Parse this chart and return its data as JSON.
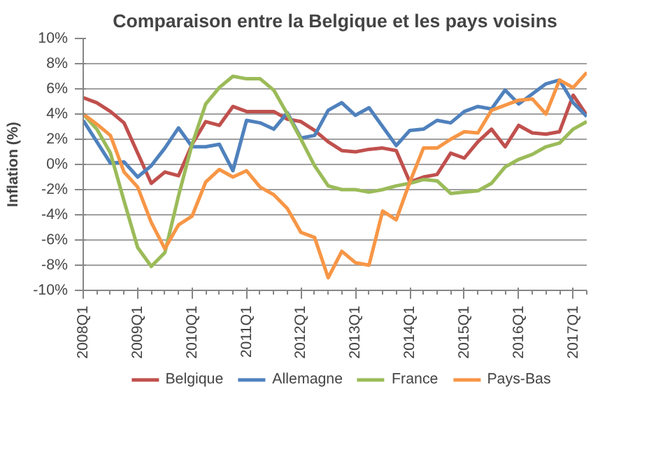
{
  "chart_data": {
    "type": "line",
    "title": "Comparaison entre la Belgique et les pays voisins",
    "ylabel": "Inflation (%)",
    "categories": [
      "2008Q1",
      null,
      null,
      null,
      "2009Q1",
      null,
      null,
      null,
      "2010Q1",
      null,
      null,
      null,
      "2011Q1",
      null,
      null,
      null,
      "2012Q1",
      null,
      null,
      null,
      "2013Q1",
      null,
      null,
      null,
      "2014Q1",
      null,
      null,
      null,
      "2015Q1",
      null,
      null,
      null,
      "2016Q1",
      null,
      null,
      null,
      "2017Q1",
      null
    ],
    "series": [
      {
        "name": "Belgique",
        "color": "#c0504d",
        "values": [
          5.3,
          4.9,
          4.2,
          3.3,
          0.9,
          -1.5,
          -0.6,
          -0.9,
          1.6,
          3.4,
          3.1,
          4.6,
          4.2,
          4.2,
          4.2,
          3.6,
          3.4,
          2.7,
          1.8,
          1.1,
          1.0,
          1.2,
          1.3,
          1.1,
          -1.4,
          -1.0,
          -0.8,
          0.9,
          0.5,
          1.8,
          2.8,
          1.4,
          3.1,
          2.5,
          2.4,
          2.6,
          5.5,
          3.9
        ]
      },
      {
        "name": "Allemagne",
        "color": "#4f81bd",
        "values": [
          3.5,
          1.8,
          0.1,
          0.2,
          -1.0,
          -0.1,
          1.3,
          2.9,
          1.4,
          1.4,
          1.6,
          -0.5,
          3.5,
          3.3,
          2.8,
          4.1,
          2.1,
          2.3,
          4.3,
          4.9,
          3.9,
          4.5,
          3.0,
          1.5,
          2.7,
          2.8,
          3.5,
          3.3,
          4.2,
          4.6,
          4.4,
          5.9,
          4.8,
          5.6,
          6.4,
          6.7,
          4.9,
          3.8
        ]
      },
      {
        "name": "France",
        "color": "#9bbb59",
        "values": [
          4.0,
          2.8,
          0.9,
          -2.9,
          -6.6,
          -8.1,
          -7.0,
          -2.5,
          1.6,
          4.8,
          6.1,
          7.0,
          6.8,
          6.8,
          5.9,
          4.0,
          2.0,
          -0.1,
          -1.7,
          -2.0,
          -2.0,
          -2.2,
          -2.0,
          -1.7,
          -1.5,
          -1.2,
          -1.3,
          -2.3,
          -2.2,
          -2.1,
          -1.5,
          -0.2,
          0.4,
          0.8,
          1.4,
          1.7,
          2.8,
          3.4
        ]
      },
      {
        "name": "Pays-Bas",
        "color": "#f79646",
        "values": [
          4.0,
          3.2,
          2.3,
          -0.6,
          -1.8,
          -4.6,
          -6.7,
          -4.8,
          -4.1,
          -1.4,
          -0.4,
          -1.0,
          -0.5,
          -1.8,
          -2.4,
          -3.5,
          -5.4,
          -5.8,
          -9.0,
          -6.9,
          -7.8,
          -8.0,
          -3.7,
          -4.4,
          -1.4,
          1.3,
          1.3,
          2.0,
          2.6,
          2.5,
          4.3,
          4.7,
          5.1,
          5.2,
          4.0,
          6.7,
          6.1,
          7.3
        ]
      }
    ],
    "ylim": [
      -10,
      10
    ],
    "yticks": [
      {
        "value": -10,
        "label": "-10%"
      },
      {
        "value": -8,
        "label": "-8%"
      },
      {
        "value": -6,
        "label": "-6%"
      },
      {
        "value": -4,
        "label": "-4%"
      },
      {
        "value": -2,
        "label": "-2%"
      },
      {
        "value": 0,
        "label": "0%"
      },
      {
        "value": 2,
        "label": "2%"
      },
      {
        "value": 4,
        "label": "4%"
      },
      {
        "value": 6,
        "label": "6%"
      },
      {
        "value": 8,
        "label": "8%"
      },
      {
        "value": 10,
        "label": "10%"
      }
    ],
    "grid": "y",
    "legend": "bottom",
    "marker": "none",
    "line_style": "solid"
  }
}
